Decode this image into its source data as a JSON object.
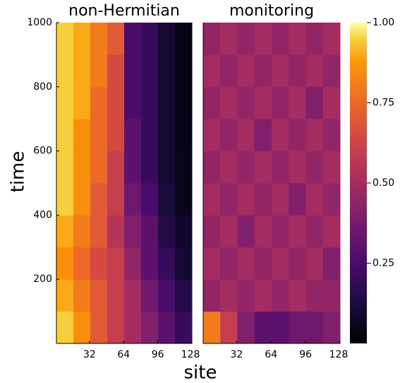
{
  "chart_data": {
    "type": "heatmap",
    "xlabel": "site",
    "ylabel": "time",
    "xlim": [
      1,
      128
    ],
    "ylim": [
      0,
      1000
    ],
    "xticks": [
      32,
      64,
      96,
      128
    ],
    "yticks": [
      200,
      400,
      600,
      800,
      1000
    ],
    "panels": [
      {
        "title": "non-Hermitian",
        "z": [
          [
            0.95,
            0.85,
            0.7,
            0.6,
            0.5,
            0.4,
            0.3,
            0.2
          ],
          [
            0.9,
            0.8,
            0.7,
            0.6,
            0.5,
            0.35,
            0.25,
            0.15
          ],
          [
            0.85,
            0.75,
            0.65,
            0.6,
            0.45,
            0.3,
            0.2,
            0.1
          ],
          [
            0.9,
            0.8,
            0.7,
            0.55,
            0.4,
            0.3,
            0.15,
            0.08
          ],
          [
            0.95,
            0.85,
            0.7,
            0.6,
            0.35,
            0.25,
            0.12,
            0.05
          ],
          [
            0.95,
            0.85,
            0.75,
            0.6,
            0.3,
            0.2,
            0.1,
            0.05
          ],
          [
            0.95,
            0.85,
            0.75,
            0.65,
            0.3,
            0.2,
            0.1,
            0.04
          ],
          [
            0.95,
            0.9,
            0.75,
            0.65,
            0.25,
            0.2,
            0.1,
            0.03
          ],
          [
            0.95,
            0.9,
            0.8,
            0.65,
            0.25,
            0.2,
            0.1,
            0.03
          ],
          [
            0.95,
            0.9,
            0.8,
            0.7,
            0.25,
            0.2,
            0.1,
            0.03
          ]
        ]
      },
      {
        "title": "monitoring",
        "z": [
          [
            0.8,
            0.6,
            0.4,
            0.3,
            0.3,
            0.35,
            0.35,
            0.4
          ],
          [
            0.45,
            0.5,
            0.45,
            0.5,
            0.45,
            0.5,
            0.45,
            0.45
          ],
          [
            0.5,
            0.45,
            0.5,
            0.45,
            0.5,
            0.45,
            0.5,
            0.4
          ],
          [
            0.45,
            0.5,
            0.4,
            0.5,
            0.45,
            0.5,
            0.45,
            0.5
          ],
          [
            0.5,
            0.45,
            0.5,
            0.45,
            0.5,
            0.4,
            0.5,
            0.45
          ],
          [
            0.45,
            0.5,
            0.45,
            0.5,
            0.45,
            0.5,
            0.45,
            0.5
          ],
          [
            0.5,
            0.45,
            0.5,
            0.4,
            0.5,
            0.45,
            0.5,
            0.45
          ],
          [
            0.45,
            0.5,
            0.45,
            0.5,
            0.45,
            0.5,
            0.4,
            0.5
          ],
          [
            0.5,
            0.45,
            0.5,
            0.45,
            0.5,
            0.45,
            0.5,
            0.45
          ],
          [
            0.45,
            0.5,
            0.45,
            0.5,
            0.45,
            0.5,
            0.45,
            0.5
          ]
        ]
      }
    ],
    "colorbar": {
      "lim": [
        0,
        1
      ],
      "ticks": [
        0.25,
        {
          "value": 0.5,
          "label": "0.50"
        },
        0.75,
        {
          "value": 1,
          "label": "1.00"
        }
      ]
    }
  }
}
